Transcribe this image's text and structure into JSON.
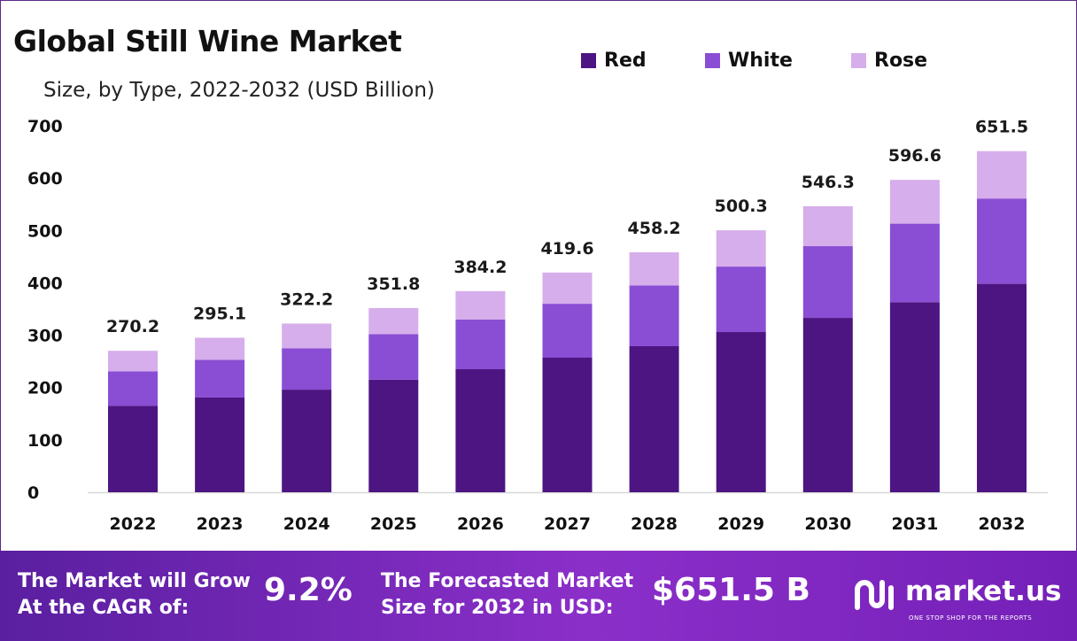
{
  "colors": {
    "red": "#4d1582",
    "white": "#8a4ed4",
    "rose": "#d6aeeb",
    "footer_start": "#5a1fa0",
    "footer_end": "#8b2fc9"
  },
  "chart_data": {
    "type": "bar",
    "stacked": true,
    "title": "Global Still Wine Market",
    "subtitle": "Size, by Type, 2022-2032 (USD Billion)",
    "categories": [
      "2022",
      "2023",
      "2024",
      "2025",
      "2026",
      "2027",
      "2028",
      "2029",
      "2030",
      "2031",
      "2032"
    ],
    "series": [
      {
        "name": "Red",
        "values": [
          165,
          181,
          196,
          215,
          235,
          257,
          279,
          306,
          333,
          363,
          398
        ]
      },
      {
        "name": "White",
        "values": [
          66,
          72,
          79,
          87,
          95,
          103,
          116,
          125,
          137,
          150,
          163
        ]
      },
      {
        "name": "Rose",
        "values": [
          39.2,
          42.1,
          47.2,
          49.8,
          54.2,
          59.6,
          63.2,
          69.3,
          76.3,
          83.6,
          90.5
        ]
      }
    ],
    "totals": [
      "270.2",
      "295.1",
      "322.2",
      "351.8",
      "384.2",
      "419.6",
      "458.2",
      "500.3",
      "546.3",
      "596.6",
      "651.5"
    ],
    "ylim": [
      0,
      700
    ],
    "yticks": [
      "0",
      "100",
      "200",
      "300",
      "400",
      "500",
      "600",
      "700"
    ],
    "legend_position": "top-right",
    "grid": false
  },
  "footer": {
    "cagr_label_line1": "The Market will Grow",
    "cagr_label_line2": "At the CAGR of:",
    "cagr_value": "9.2%",
    "forecast_label_line1": "The Forecasted Market",
    "forecast_label_line2": "Size for 2032 in USD:",
    "forecast_value": "$651.5 B",
    "brand_name": "market.us",
    "brand_tagline": "ONE STOP SHOP FOR THE REPORTS",
    "brand_logo_icon": "market-us-logo-icon"
  }
}
